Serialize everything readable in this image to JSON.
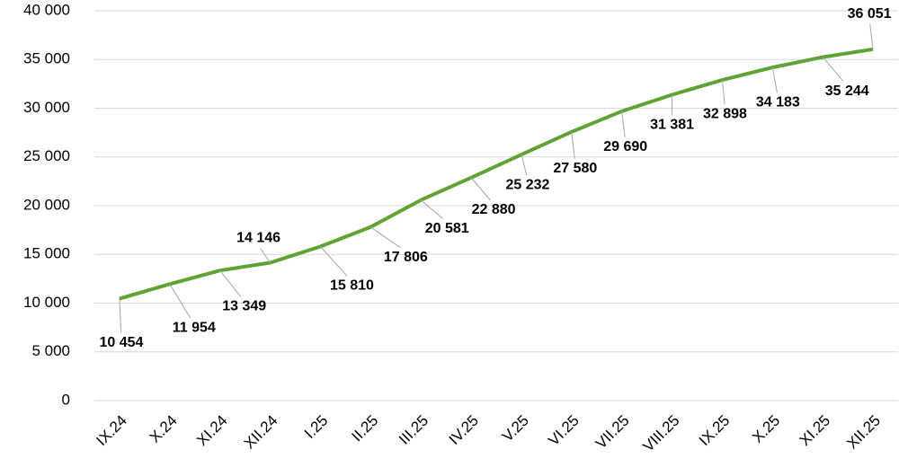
{
  "chart_data": {
    "type": "line",
    "categories": [
      "IX.24",
      "X.24",
      "XI.24",
      "XII.24",
      "I.25",
      "II.25",
      "III.25",
      "IV.25",
      "V.25",
      "VI.25",
      "VII.25",
      "VIII.25",
      "IX.25",
      "X.25",
      "XI.25",
      "XII.25"
    ],
    "values": [
      10454,
      11954,
      13349,
      14146,
      15810,
      17806,
      20581,
      22880,
      25232,
      27580,
      29690,
      31381,
      32898,
      34183,
      35244,
      36051
    ],
    "value_labels": [
      "10 454",
      "11 954",
      "13 349",
      "14 146",
      "15 810",
      "17 806",
      "20 581",
      "22 880",
      "25 232",
      "27 580",
      "29 690",
      "31 381",
      "32 898",
      "34 183",
      "35 244",
      "36 051"
    ],
    "color": "#5ea334",
    "ylim": [
      0,
      40000
    ],
    "yticks": [
      0,
      {
        "value": 5000,
        "label": "5 000"
      },
      {
        "value": 10000,
        "label": "10 000"
      },
      {
        "value": 15000,
        "label": "15 000"
      },
      {
        "value": 20000,
        "label": "20 000"
      },
      {
        "value": 25000,
        "label": "25 000"
      },
      {
        "value": 30000,
        "label": "30 000"
      },
      {
        "value": 35000,
        "label": "35 000"
      },
      {
        "value": 40000,
        "label": "40 000"
      }
    ],
    "grid": true
  }
}
